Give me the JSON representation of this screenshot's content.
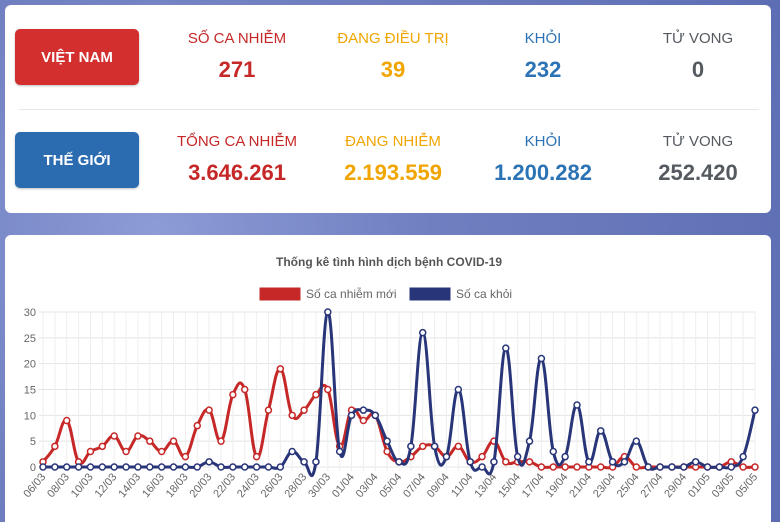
{
  "vietnam": {
    "label": "VIỆT NAM",
    "infected_label": "SỐ CA NHIỄM",
    "infected": "271",
    "treating_label": "ĐANG ĐIỀU TRỊ",
    "treating": "39",
    "recovered_label": "KHỎI",
    "recovered": "232",
    "deaths_label": "TỬ VONG",
    "deaths": "0"
  },
  "world": {
    "label": "THẾ GIỚI",
    "infected_label": "TỔNG CA NHIỄM",
    "infected": "3.646.261",
    "active_label": "ĐANG NHIỄM",
    "active": "2.193.559",
    "recovered_label": "KHỎI",
    "recovered": "1.200.282",
    "deaths_label": "TỬ VONG",
    "deaths": "252.420"
  },
  "chart_data": {
    "type": "line",
    "title": "Thống kê tình hình dịch bệnh COVID-19",
    "ylim": [
      0,
      30
    ],
    "yticks": [
      0,
      5,
      10,
      15,
      20,
      25,
      30
    ],
    "grid": true,
    "legend_position": "top",
    "x": [
      "06/03",
      "07/03",
      "08/03",
      "09/03",
      "10/03",
      "11/03",
      "12/03",
      "13/03",
      "14/03",
      "15/03",
      "16/03",
      "17/03",
      "18/03",
      "19/03",
      "20/03",
      "21/03",
      "22/03",
      "23/03",
      "24/03",
      "25/03",
      "26/03",
      "27/03",
      "28/03",
      "29/03",
      "30/03",
      "31/03",
      "01/04",
      "02/04",
      "03/04",
      "04/04",
      "05/04",
      "06/04",
      "07/04",
      "08/04",
      "09/04",
      "10/04",
      "11/04",
      "12/04",
      "13/04",
      "14/04",
      "15/04",
      "16/04",
      "17/04",
      "18/04",
      "19/04",
      "20/04",
      "21/04",
      "22/04",
      "23/04",
      "24/04",
      "25/04",
      "26/04",
      "27/04",
      "28/04",
      "29/04",
      "30/04",
      "01/05",
      "02/05",
      "03/05",
      "04/05",
      "05/05"
    ],
    "x_tick_labels": [
      "06/03",
      "08/03",
      "10/03",
      "12/03",
      "14/03",
      "16/03",
      "18/03",
      "20/03",
      "22/03",
      "24/03",
      "26/03",
      "28/03",
      "30/03",
      "01/04",
      "03/04",
      "05/04",
      "07/04",
      "09/04",
      "11/04",
      "13/04",
      "15/04",
      "17/04",
      "19/04",
      "21/04",
      "23/04",
      "25/04",
      "27/04",
      "29/04",
      "01/05",
      "03/05",
      "05/05"
    ],
    "series": [
      {
        "name": "Số ca nhiễm mới",
        "color": "#c62828",
        "values": [
          1,
          4,
          9,
          1,
          3,
          4,
          6,
          3,
          6,
          5,
          3,
          5,
          2,
          8,
          11,
          5,
          14,
          15,
          2,
          11,
          19,
          10,
          11,
          14,
          15,
          4,
          11,
          9,
          10,
          3,
          1,
          2,
          4,
          4,
          2,
          4,
          1,
          2,
          5,
          1,
          1,
          1,
          0,
          0,
          0,
          0,
          0,
          0,
          0,
          2,
          0,
          0,
          0,
          0,
          0,
          0,
          0,
          0,
          1,
          0,
          0
        ]
      },
      {
        "name": "Số ca khỏi",
        "color": "#283579",
        "values": [
          0,
          0,
          0,
          0,
          0,
          0,
          0,
          0,
          0,
          0,
          0,
          0,
          0,
          0,
          1,
          0,
          0,
          0,
          0,
          0,
          0,
          3,
          1,
          1,
          30,
          3,
          10,
          11,
          10,
          5,
          1,
          4,
          26,
          4,
          2,
          15,
          1,
          0,
          1,
          23,
          2,
          5,
          21,
          3,
          2,
          12,
          1,
          7,
          1,
          1,
          5,
          0,
          0,
          0,
          0,
          1,
          0,
          0,
          0,
          2,
          11
        ]
      }
    ]
  }
}
